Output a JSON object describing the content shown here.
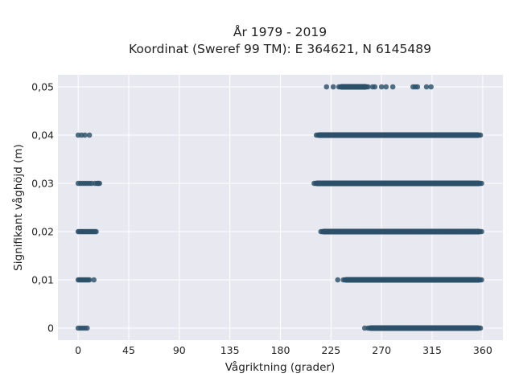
{
  "chart_data": {
    "type": "scatter",
    "title": "År 1979 - 2019",
    "subtitle": "Koordinat (Sweref 99 TM): E 364621, N 6145489",
    "xlabel": "Vågriktning (grader)",
    "ylabel": "Signifikant våghöjd (m)",
    "xlim": [
      -18,
      378
    ],
    "ylim": [
      -0.0025,
      0.0525
    ],
    "xticks": [
      0,
      45,
      90,
      135,
      180,
      225,
      270,
      315,
      360
    ],
    "xtick_labels": [
      "0",
      "45",
      "90",
      "135",
      "180",
      "225",
      "270",
      "315",
      "360"
    ],
    "yticks": [
      0,
      0.01,
      0.02,
      0.03,
      0.04,
      0.05
    ],
    "ytick_labels": [
      "0",
      "0,01",
      "0,02",
      "0,03",
      "0,04",
      "0,05"
    ],
    "grid": true,
    "background": "#e8e8f0",
    "grid_color": "#ffffff",
    "marker_color": "#2c5069",
    "series": [
      {
        "values": [
          {
            "y": 0.05,
            "dense_x": [
              232,
              258
            ],
            "sparse_x": [
              221,
              227,
              262,
              264,
              270,
              274,
              280,
              298,
              300,
              302,
              310,
              314
            ]
          },
          {
            "y": 0.04,
            "dense_x": [
              212,
              358
            ],
            "sparse_x": [
              0,
              3,
              6,
              10
            ]
          },
          {
            "y": 0.03,
            "dense_x": [
              210,
              359
            ],
            "sparse_x": [
              0,
              2,
              4,
              6,
              8,
              10,
              12,
              15,
              17,
              18,
              19
            ]
          },
          {
            "y": 0.02,
            "dense_x": [
              216,
              359
            ],
            "sparse_x": [
              0,
              1,
              2,
              3,
              4,
              5,
              6,
              7,
              8,
              9,
              10,
              11,
              12,
              13,
              14,
              15,
              16
            ]
          },
          {
            "y": 0.01,
            "dense_x": [
              236,
              359
            ],
            "sparse_x": [
              0,
              1,
              2,
              3,
              4,
              5,
              6,
              7,
              8,
              9,
              10,
              14,
              231
            ]
          },
          {
            "y": 0.0,
            "dense_x": [
              258,
              358
            ],
            "sparse_x": [
              0,
              2,
              4,
              6,
              8,
              255
            ]
          }
        ]
      }
    ]
  }
}
